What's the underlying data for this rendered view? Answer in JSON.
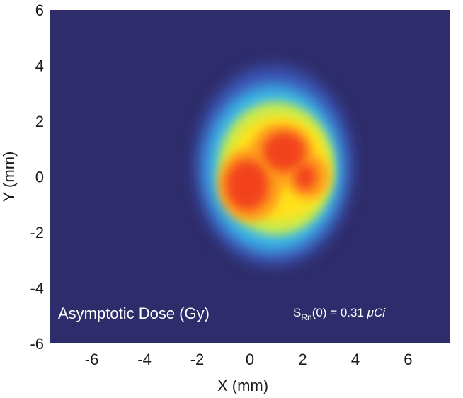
{
  "chart_data": {
    "type": "heatmap",
    "title": "",
    "xlabel": "X (mm)",
    "ylabel": "Y (mm)",
    "xlim": [
      -7.6,
      7.6
    ],
    "ylim": [
      -6,
      6
    ],
    "x_ticks": [
      "-6",
      "-4",
      "-2",
      "0",
      "2",
      "4",
      "6"
    ],
    "x_tick_values": [
      -6,
      -4,
      -2,
      0,
      2,
      4,
      6
    ],
    "y_ticks": [
      "6",
      "4",
      "2",
      "0",
      "-2",
      "-4",
      "-6"
    ],
    "y_tick_values": [
      6,
      4,
      2,
      0,
      -2,
      -4,
      -6
    ],
    "grid": false,
    "colormap": [
      "#2e2c6b",
      "#3d3f9a",
      "#2f6fd0",
      "#3bb8e8",
      "#6ed7b8",
      "#c8ea4e",
      "#ffe21a",
      "#ff9a1a",
      "#f2421c"
    ],
    "background_color": "#2e2c6b",
    "annotations": {
      "label_left": "Asymptotic Dose (Gy)",
      "label_right_prefix": "S",
      "label_right_subscript": "Rn",
      "label_right_suffix": "(0) = 0.31 ",
      "label_right_unit": "μCi"
    },
    "hotspot_regions": [
      {
        "level": "outer halo",
        "cx": 0.9,
        "cy": 0.4,
        "rx": 3.0,
        "ry": 3.6
      },
      {
        "level": "cyan",
        "cx": 0.9,
        "cy": 0.3,
        "rx": 2.6,
        "ry": 3.0
      },
      {
        "level": "green",
        "cx": 1.0,
        "cy": 0.3,
        "rx": 2.2,
        "ry": 2.4
      },
      {
        "level": "yellow",
        "cx": 1.1,
        "cy": 0.3,
        "rx": 1.9,
        "ry": 1.9
      },
      {
        "level": "orange-left",
        "cx": 0.0,
        "cy": -0.3,
        "rx": 1.2,
        "ry": 1.3
      },
      {
        "level": "orange-top",
        "cx": 1.2,
        "cy": 0.8,
        "rx": 1.2,
        "ry": 1.1
      },
      {
        "level": "orange-right",
        "cx": 2.2,
        "cy": 0.0,
        "rx": 0.8,
        "ry": 0.8
      },
      {
        "level": "red-left",
        "cx": -0.1,
        "cy": -0.3,
        "rx": 0.8,
        "ry": 0.9
      },
      {
        "level": "red-top",
        "cx": 1.3,
        "cy": 0.9,
        "rx": 0.8,
        "ry": 0.7
      },
      {
        "level": "red-right",
        "cx": 2.1,
        "cy": 0.0,
        "rx": 0.4,
        "ry": 0.45
      }
    ]
  }
}
